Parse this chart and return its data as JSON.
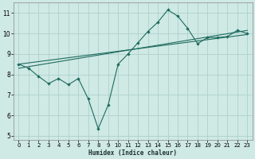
{
  "xlabel": "Humidex (Indice chaleur)",
  "xlim": [
    -0.5,
    23.5
  ],
  "ylim": [
    4.8,
    11.5
  ],
  "yticks": [
    5,
    6,
    7,
    8,
    9,
    10,
    11
  ],
  "xticks": [
    0,
    1,
    2,
    3,
    4,
    5,
    6,
    7,
    8,
    9,
    10,
    11,
    12,
    13,
    14,
    15,
    16,
    17,
    18,
    19,
    20,
    21,
    22,
    23
  ],
  "bg_color": "#cfe9e5",
  "grid_color": "#aed0cc",
  "line_color": "#1e6b5e",
  "line1_x": [
    0,
    1,
    2,
    3,
    4,
    5,
    6,
    7,
    8,
    9,
    10,
    11,
    12,
    13,
    14,
    15,
    16,
    17,
    18,
    19,
    20,
    21,
    22,
    23
  ],
  "line1_y": [
    8.5,
    8.3,
    7.9,
    7.55,
    7.8,
    7.5,
    7.8,
    6.8,
    5.35,
    6.5,
    8.5,
    9.0,
    9.55,
    10.1,
    10.55,
    11.15,
    10.85,
    10.25,
    9.5,
    9.8,
    9.8,
    9.85,
    10.15,
    10.0
  ],
  "line2_x": [
    0,
    23
  ],
  "line2_y": [
    8.5,
    9.95
  ],
  "line3_x": [
    0,
    23
  ],
  "line3_y": [
    8.3,
    10.15
  ]
}
